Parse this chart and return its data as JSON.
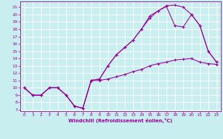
{
  "xlabel": "Windchill (Refroidissement éolien,°C)",
  "bg_color": "#c8eef0",
  "grid_color": "#ffffff",
  "line_color": "#990099",
  "xlim": [
    -0.5,
    23.5
  ],
  "ylim": [
    6.8,
    21.8
  ],
  "xticks": [
    0,
    1,
    2,
    3,
    4,
    5,
    6,
    7,
    8,
    9,
    10,
    11,
    12,
    13,
    14,
    15,
    16,
    17,
    18,
    19,
    20,
    21,
    22,
    23
  ],
  "yticks": [
    7,
    8,
    9,
    10,
    11,
    12,
    13,
    14,
    15,
    16,
    17,
    18,
    19,
    20,
    21
  ],
  "line1_x": [
    0,
    1,
    2,
    3,
    4,
    5,
    6,
    7,
    8,
    9,
    10,
    11,
    12,
    13,
    14,
    15,
    16,
    17,
    18,
    19,
    20,
    21,
    22,
    23
  ],
  "line1_y": [
    10,
    9,
    9,
    10,
    10,
    9,
    7.5,
    7.2,
    11,
    11,
    11.2,
    11.5,
    11.8,
    12.2,
    12.5,
    13,
    13.3,
    13.5,
    13.8,
    13.9,
    14,
    13.5,
    13.3,
    13.2
  ],
  "line2_x": [
    0,
    1,
    2,
    3,
    4,
    5,
    6,
    7,
    8,
    9,
    10,
    11,
    12,
    13,
    14,
    15,
    16,
    17,
    18,
    19,
    20,
    21,
    22,
    23
  ],
  "line2_y": [
    10,
    9,
    9,
    10,
    10,
    9,
    7.5,
    7.2,
    11,
    11.2,
    13,
    14.5,
    15.5,
    16.5,
    18,
    19.5,
    20.5,
    21.2,
    21.3,
    21,
    20,
    18.5,
    15,
    13.5
  ],
  "line3_x": [
    0,
    1,
    2,
    3,
    4,
    5,
    6,
    7,
    8,
    9,
    10,
    11,
    12,
    13,
    14,
    15,
    16,
    17,
    18,
    19,
    20,
    21,
    22,
    23
  ],
  "line3_y": [
    10,
    9.0,
    9.0,
    10,
    10,
    9,
    7.5,
    7.2,
    11,
    11.2,
    13,
    14.5,
    15.5,
    16.5,
    18,
    19.8,
    20.5,
    21.1,
    18.5,
    18.3,
    20,
    18.5,
    15,
    13.5
  ]
}
